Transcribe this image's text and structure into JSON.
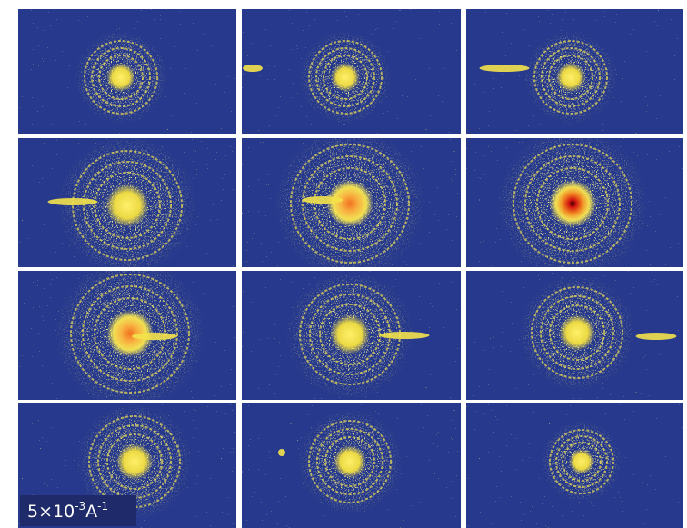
{
  "scale_label": {
    "base": "5×10",
    "exponent": "-3",
    "unit": "A",
    "unit_exponent": "-1"
  }
}
